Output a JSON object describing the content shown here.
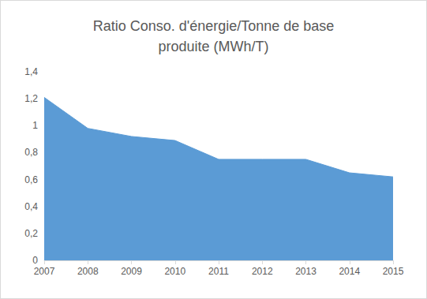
{
  "chart_data": {
    "type": "area",
    "title": "Ratio Conso. d'énergie/Tonne de base\nproduite (MWh/T)",
    "categories": [
      "2007",
      "2008",
      "2009",
      "2010",
      "2011",
      "2012",
      "2013",
      "2014",
      "2015"
    ],
    "values": [
      1.21,
      0.98,
      0.92,
      0.89,
      0.75,
      0.75,
      0.75,
      0.65,
      0.62
    ],
    "color": "#5b9bd5",
    "ylim": [
      0,
      1.4
    ],
    "yticks": [
      0,
      {
        "value": 0.2,
        "label": "0,2"
      },
      {
        "value": 0.4,
        "label": "0,4"
      },
      {
        "value": 0.6,
        "label": "0,6"
      },
      {
        "value": 0.8,
        "label": "0,8"
      },
      1,
      {
        "value": 1.2,
        "label": "1,2"
      },
      {
        "value": 1.4,
        "label": "1,4"
      }
    ],
    "grid": false
  }
}
